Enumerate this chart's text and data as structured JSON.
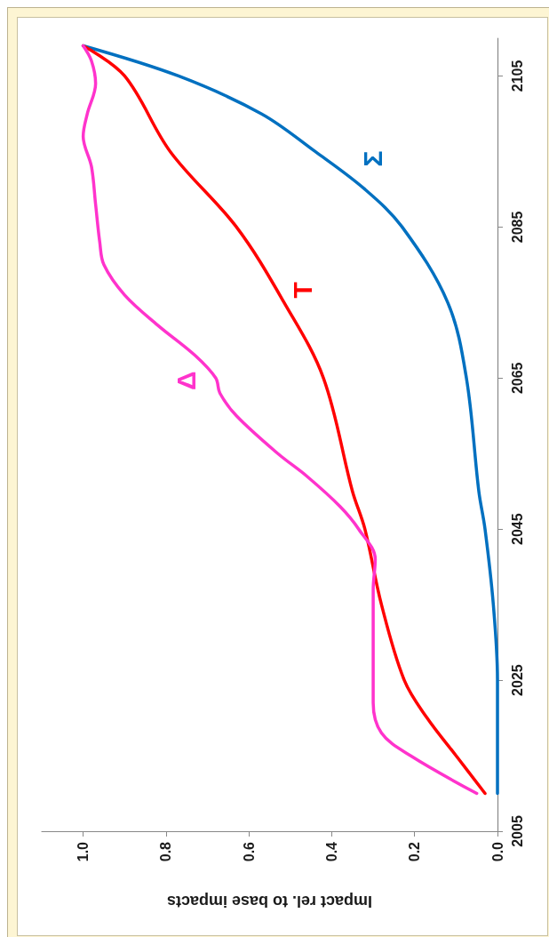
{
  "chart_data": {
    "type": "line",
    "xlabel": "Impact rel. to base impacts",
    "xlim": [
      1.1,
      0
    ],
    "xticks": [
      {
        "value": 0,
        "label": "0.0"
      },
      {
        "value": 0.2,
        "label": "0.2"
      },
      {
        "value": 0.4,
        "label": "0.4"
      },
      {
        "value": 0.6,
        "label": "0.6"
      },
      {
        "value": 0.8,
        "label": "0.8"
      },
      {
        "value": 1,
        "label": "1.0"
      }
    ],
    "ylim": [
      2005,
      2110
    ],
    "yticks": [
      2005,
      2025,
      2045,
      2065,
      2085,
      2105
    ],
    "grid": false,
    "marker": "none",
    "line_style": "solid",
    "series": [
      {
        "name": "Σ",
        "color": "#0070c0",
        "x": [
          0,
          0,
          0.01,
          0.03,
          0.045,
          0.075,
          0.12,
          0.23,
          0.32,
          0.44,
          0.57,
          0.77,
          1.0
        ],
        "values": [
          2010,
          2025,
          2035,
          2045,
          2050,
          2065,
          2075,
          2085,
          2090,
          2095,
          2100,
          2105,
          2109
        ]
      },
      {
        "name": "T",
        "color": "#ff0000",
        "x": [
          0.03,
          0.1,
          0.17,
          0.225,
          0.28,
          0.32,
          0.35,
          0.42,
          0.515,
          0.63,
          0.79,
          0.9,
          1.0
        ],
        "values": [
          2010,
          2015,
          2020,
          2025,
          2035,
          2045,
          2050,
          2065,
          2075,
          2085,
          2095,
          2105,
          2109
        ]
      },
      {
        "name": "Δ",
        "color": "#ff33cc",
        "x": [
          0.05,
          0.21,
          0.28,
          0.3,
          0.3,
          0.3,
          0.295,
          0.335,
          0.38,
          0.46,
          0.53,
          0.63,
          0.67,
          0.68,
          0.73,
          0.82,
          0.9,
          0.95,
          0.96,
          0.97,
          0.98,
          1.0,
          0.99,
          0.97,
          0.98,
          1.0
        ],
        "values": [
          2010,
          2015,
          2018,
          2022,
          2030,
          2037,
          2041,
          2045,
          2048,
          2052,
          2055,
          2060,
          2063,
          2065,
          2068,
          2072,
          2076,
          2080,
          2083,
          2088,
          2093,
          2097,
          2100,
          2104,
          2107,
          2109
        ]
      }
    ]
  }
}
